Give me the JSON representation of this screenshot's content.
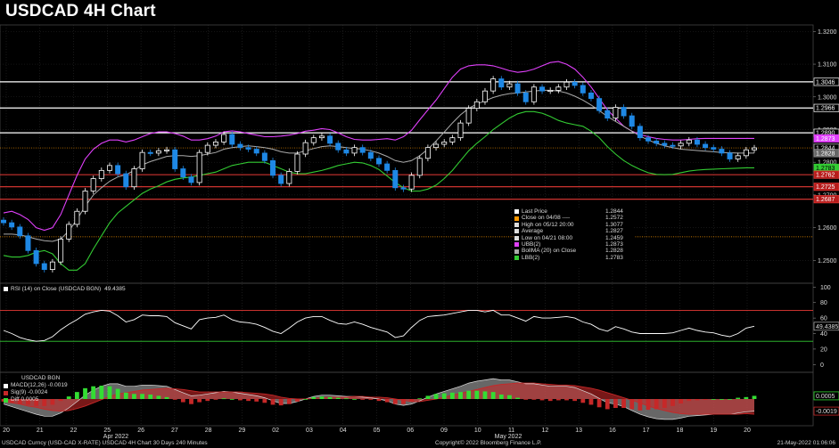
{
  "title": "USDCAD 4H Chart",
  "colors": {
    "up": "#ffffff",
    "down": "#1e88e5",
    "ubb": "#e040fb",
    "lbb": "#33cc33",
    "ma": "#aaaaaa",
    "rsi": "#ffffff",
    "macd_area": "#bbbbbb",
    "sig_area": "#c62828",
    "diff_up": "#33dd33",
    "diff_down": "#c62828",
    "support": "#e53935",
    "resistance": "#ffffff",
    "low_line": "#ff9800"
  },
  "chart_data": {
    "type": "candlestick",
    "instrument": "USDCAD",
    "timeframe": "4H",
    "x_dates": [
      "20",
      "21",
      "22",
      "25",
      "26",
      "27",
      "28",
      "29",
      "02",
      "03",
      "04",
      "05",
      "06",
      "09",
      "10",
      "11",
      "12",
      "13",
      "16",
      "17",
      "18",
      "19",
      "20"
    ],
    "x_month_labels": [
      "Apr 2022",
      "May 2022"
    ],
    "price_axis": {
      "ylim": [
        1.243,
        1.322
      ],
      "ticks": [
        1.25,
        1.26,
        1.27,
        1.28,
        1.29,
        1.3,
        1.31,
        1.32
      ],
      "tick_labels": [
        "1.2500",
        "1.2600",
        "1.2700",
        "1.2800",
        "1.2900",
        "1.3000",
        "1.3100",
        "1.3200"
      ]
    },
    "horizontal_lines": {
      "resistance": [
        1.3046,
        1.2966,
        1.289
      ],
      "support": [
        1.2762,
        1.2725,
        1.2687
      ],
      "low_dotted": 1.2572,
      "last_dotted": 1.2844
    },
    "price_tags": [
      {
        "value": 1.3046,
        "label": "1.3046",
        "kind": "resistance"
      },
      {
        "value": 1.2966,
        "label": "1.2966",
        "kind": "resistance"
      },
      {
        "value": 1.289,
        "label": "1.2890",
        "kind": "resistance"
      },
      {
        "value": 1.2873,
        "label": "1.2873",
        "kind": "ubb"
      },
      {
        "value": 1.2844,
        "label": "1.2844",
        "kind": "last"
      },
      {
        "value": 1.2828,
        "label": "1.2828",
        "kind": "ma"
      },
      {
        "value": 1.2783,
        "label": "1.2783",
        "kind": "lbb"
      },
      {
        "value": 1.2762,
        "label": "1.2762",
        "kind": "support"
      },
      {
        "value": 1.2725,
        "label": "1.2725",
        "kind": "support"
      },
      {
        "value": 1.2687,
        "label": "1.2687",
        "kind": "support"
      }
    ],
    "close_series": [
      1.2615,
      1.2602,
      1.2575,
      1.253,
      1.249,
      1.2472,
      1.2495,
      1.2565,
      1.261,
      1.265,
      1.2712,
      1.275,
      1.2775,
      1.279,
      1.2765,
      1.2725,
      1.278,
      1.283,
      1.2828,
      1.2835,
      1.2838,
      1.278,
      1.2755,
      1.2738,
      1.283,
      1.2852,
      1.2862,
      1.2885,
      1.2855,
      1.2845,
      1.284,
      1.2828,
      1.2805,
      1.276,
      1.2735,
      1.2772,
      1.2825,
      1.286,
      1.2875,
      1.288,
      1.2858,
      1.2838,
      1.2828,
      1.2845,
      1.283,
      1.2812,
      1.2795,
      1.2775,
      1.2722,
      1.2718,
      1.276,
      1.2812,
      1.2845,
      1.2855,
      1.2862,
      1.2875,
      1.292,
      1.2965,
      1.2985,
      1.3018,
      1.3055,
      1.303,
      1.304,
      1.3012,
      1.2985,
      1.303,
      1.3018,
      1.302,
      1.303,
      1.3045,
      1.3035,
      1.3012,
      1.2995,
      1.2958,
      1.2935,
      1.2968,
      1.2942,
      1.291,
      1.2875,
      1.2865,
      1.2858,
      1.2852,
      1.285,
      1.2858,
      1.2868,
      1.2855,
      1.2845,
      1.284,
      1.2828,
      1.281,
      1.282,
      1.2838,
      1.2844
    ],
    "upper_band": [
      1.2645,
      1.265,
      1.264,
      1.2625,
      1.26,
      1.2592,
      1.26,
      1.264,
      1.27,
      1.276,
      1.281,
      1.284,
      1.2858,
      1.2868,
      1.2868,
      1.2862,
      1.2868,
      1.2878,
      1.2888,
      1.2893,
      1.2893,
      1.2888,
      1.288,
      1.2868,
      1.2868,
      1.2872,
      1.288,
      1.2893,
      1.2896,
      1.2893,
      1.2888,
      1.2883,
      1.2878,
      1.2878,
      1.288,
      1.2883,
      1.2888,
      1.2895,
      1.2898,
      1.2903,
      1.29,
      1.289,
      1.2878,
      1.287,
      1.2868,
      1.2868,
      1.287,
      1.2872,
      1.2868,
      1.2878,
      1.2898,
      1.293,
      1.296,
      1.299,
      1.3025,
      1.306,
      1.3085,
      1.3095,
      1.3098,
      1.3098,
      1.3095,
      1.3088,
      1.308,
      1.3075,
      1.3078,
      1.3085,
      1.3095,
      1.3105,
      1.3108,
      1.31,
      1.3085,
      1.306,
      1.303,
      1.2995,
      1.296,
      1.2935,
      1.291,
      1.2895,
      1.2885,
      1.2878,
      1.2873,
      1.287,
      1.2868,
      1.2868,
      1.287,
      1.2872,
      1.2873,
      1.2873,
      1.2873,
      1.2873,
      1.2873,
      1.2873,
      1.2873
    ],
    "moving_avg": [
      1.258,
      1.258,
      1.2578,
      1.2572,
      1.2565,
      1.256,
      1.2558,
      1.2565,
      1.259,
      1.2625,
      1.2665,
      1.27,
      1.2722,
      1.2742,
      1.2755,
      1.2762,
      1.2775,
      1.2792,
      1.2802,
      1.281,
      1.2818,
      1.282,
      1.282,
      1.2818,
      1.282,
      1.2825,
      1.283,
      1.284,
      1.2845,
      1.2848,
      1.285,
      1.2848,
      1.2845,
      1.284,
      1.2832,
      1.2828,
      1.2828,
      1.2835,
      1.2842,
      1.2848,
      1.285,
      1.2848,
      1.2845,
      1.2842,
      1.284,
      1.2835,
      1.2828,
      1.2818,
      1.2805,
      1.28,
      1.2805,
      1.282,
      1.284,
      1.2865,
      1.2892,
      1.292,
      1.2945,
      1.2965,
      1.2978,
      1.2988,
      1.2998,
      1.3005,
      1.301,
      1.3012,
      1.3015,
      1.3018,
      1.302,
      1.302,
      1.3018,
      1.3012,
      1.3002,
      1.299,
      1.2975,
      1.2958,
      1.294,
      1.2925,
      1.291,
      1.2895,
      1.288,
      1.2868,
      1.2858,
      1.285,
      1.2845,
      1.284,
      1.2838,
      1.2836,
      1.2834,
      1.2832,
      1.283,
      1.2829,
      1.2828,
      1.2828,
      1.2828
    ],
    "lower_band": [
      1.2515,
      1.251,
      1.251,
      1.2515,
      1.2525,
      1.253,
      1.252,
      1.249,
      1.247,
      1.247,
      1.249,
      1.2535,
      1.2575,
      1.2615,
      1.2645,
      1.2665,
      1.2685,
      1.2705,
      1.2718,
      1.2728,
      1.274,
      1.2748,
      1.2752,
      1.2755,
      1.276,
      1.2765,
      1.277,
      1.278,
      1.279,
      1.2795,
      1.28,
      1.28,
      1.28,
      1.279,
      1.278,
      1.277,
      1.2765,
      1.2765,
      1.277,
      1.2775,
      1.2782,
      1.279,
      1.2795,
      1.28,
      1.2798,
      1.279,
      1.2778,
      1.2758,
      1.2738,
      1.2722,
      1.2712,
      1.2712,
      1.2718,
      1.273,
      1.275,
      1.2775,
      1.2805,
      1.2835,
      1.2858,
      1.2878,
      1.29,
      1.2918,
      1.2935,
      1.2948,
      1.2955,
      1.2955,
      1.295,
      1.294,
      1.2928,
      1.292,
      1.2915,
      1.291,
      1.2895,
      1.2875,
      1.2848,
      1.2825,
      1.2805,
      1.279,
      1.2778,
      1.2768,
      1.2763,
      1.2762,
      1.2763,
      1.2768,
      1.2773,
      1.2776,
      1.2778,
      1.2779,
      1.278,
      1.2781,
      1.2782,
      1.2783,
      1.2783
    ],
    "legend": [
      {
        "label": "Last Price",
        "value": "1.2844",
        "color": "#ffffff"
      },
      {
        "label": "Close on 04/08 ----",
        "value": "1.2572",
        "color": "#ff9800"
      },
      {
        "label": "High on 05/12 20:00",
        "value": "1.3077",
        "color": "#dddddd"
      },
      {
        "label": "Average",
        "value": "1.2827",
        "color": "#dddddd"
      },
      {
        "label": "Low on 04/21 08:00",
        "value": "1.2459",
        "color": "#dddddd"
      },
      {
        "label": "UBB(2)",
        "value": "1.2873",
        "color": "#e040fb"
      },
      {
        "label": "BollMA (20)  on Close",
        "value": "1.2828",
        "color": "#aaaaaa"
      },
      {
        "label": "LBB(2)",
        "value": "1.2783",
        "color": "#33cc33"
      }
    ],
    "rsi": {
      "label": "RSI (14)  on Close (USDCAD BGN)",
      "value": "49.4385",
      "last": 49.4385,
      "ylim": [
        -10,
        105
      ],
      "ticks": [
        0,
        20,
        40,
        60,
        80,
        100
      ],
      "overbought": 70,
      "oversold": 30,
      "series": [
        44,
        40,
        35,
        32,
        30,
        31,
        36,
        45,
        52,
        58,
        65,
        68,
        70,
        69,
        63,
        55,
        58,
        64,
        63,
        63,
        62,
        54,
        50,
        46,
        58,
        60,
        61,
        64,
        58,
        55,
        54,
        52,
        48,
        43,
        40,
        47,
        55,
        60,
        62,
        62,
        57,
        53,
        52,
        55,
        52,
        48,
        45,
        42,
        35,
        37,
        48,
        57,
        62,
        63,
        64,
        66,
        68,
        70,
        70,
        68,
        70,
        64,
        64,
        60,
        56,
        62,
        60,
        60,
        61,
        62,
        60,
        55,
        52,
        46,
        43,
        49,
        46,
        42,
        40,
        40,
        40,
        40,
        41,
        44,
        47,
        44,
        42,
        41,
        38,
        36,
        40,
        47,
        49.4
      ]
    },
    "macd": {
      "title": "USDCAD BGN",
      "entries": [
        {
          "label": "MACD(12,26)",
          "value": "-0.0019",
          "color": "#ffffff"
        },
        {
          "label": "Sig(9)",
          "value": "-0.0024",
          "color": "#c62828"
        },
        {
          "label": "Diff",
          "value": "0.0005",
          "color": "#33dd33"
        }
      ],
      "tag_labels": [
        "0.0005",
        "-0.0019"
      ],
      "ylim": [
        -0.0042,
        0.0042
      ],
      "macd_series": [
        -0.0008,
        -0.0012,
        -0.0016,
        -0.002,
        -0.0024,
        -0.0027,
        -0.0027,
        -0.0022,
        -0.0014,
        -0.0004,
        0.0006,
        0.0014,
        0.002,
        0.0024,
        0.0024,
        0.002,
        0.002,
        0.0022,
        0.0022,
        0.0021,
        0.002,
        0.0015,
        0.001,
        0.0005,
        0.0006,
        0.0008,
        0.001,
        0.0012,
        0.0011,
        0.0009,
        0.0007,
        0.0005,
        0.0002,
        -0.0003,
        -0.0007,
        -0.0007,
        -0.0004,
        0.0,
        0.0004,
        0.0006,
        0.0006,
        0.0005,
        0.0004,
        0.0004,
        0.0003,
        0.0002,
        0.0,
        -0.0003,
        -0.0008,
        -0.001,
        -0.0008,
        -0.0003,
        0.0003,
        0.0008,
        0.0012,
        0.0016,
        0.002,
        0.0025,
        0.0028,
        0.003,
        0.0032,
        0.003,
        0.003,
        0.0027,
        0.0024,
        0.0024,
        0.0022,
        0.002,
        0.002,
        0.002,
        0.0018,
        0.0013,
        0.0008,
        0.0001,
        -0.0006,
        -0.0008,
        -0.0012,
        -0.0018,
        -0.0024,
        -0.0028,
        -0.0031,
        -0.0032,
        -0.0032,
        -0.003,
        -0.0027,
        -0.0026,
        -0.0025,
        -0.0024,
        -0.0024,
        -0.0024,
        -0.0022,
        -0.002,
        -0.0019
      ],
      "sig_series": [
        -0.0004,
        -0.0006,
        -0.0008,
        -0.0011,
        -0.0013,
        -0.0016,
        -0.0018,
        -0.0019,
        -0.0018,
        -0.0015,
        -0.0011,
        -0.0006,
        -0.0001,
        0.0004,
        0.0008,
        0.001,
        0.0012,
        0.0014,
        0.0015,
        0.0016,
        0.0017,
        0.0016,
        0.0015,
        0.0013,
        0.0011,
        0.0011,
        0.0011,
        0.0011,
        0.0011,
        0.0011,
        0.001,
        0.0009,
        0.0008,
        0.0006,
        0.0003,
        0.0001,
        0.0,
        0.0,
        0.0001,
        0.0002,
        0.0003,
        0.0003,
        0.0003,
        0.0004,
        0.0004,
        0.0003,
        0.0003,
        0.0002,
        0.0,
        -0.0002,
        -0.0004,
        -0.0004,
        -0.0002,
        0.0,
        0.0003,
        0.0006,
        0.0009,
        0.0012,
        0.0015,
        0.0018,
        0.0021,
        0.0023,
        0.0024,
        0.0025,
        0.0025,
        0.0025,
        0.0024,
        0.0023,
        0.0022,
        0.0022,
        0.0021,
        0.0019,
        0.0017,
        0.0014,
        0.001,
        0.0006,
        0.0002,
        -0.0002,
        -0.0006,
        -0.0011,
        -0.0015,
        -0.0018,
        -0.0021,
        -0.0023,
        -0.0024,
        -0.0024,
        -0.0024,
        -0.0024,
        -0.0024,
        -0.0024,
        -0.0024,
        -0.0023,
        -0.0024
      ]
    }
  },
  "footer": {
    "left": "USDCAD Curncy (USD-CAD X-RATE) USDCAD 4H Chart 30 Days 240 Minutes",
    "center": "Copyright© 2022 Bloomberg Finance L.P.",
    "right": "21-May-2022 01:06:06"
  }
}
